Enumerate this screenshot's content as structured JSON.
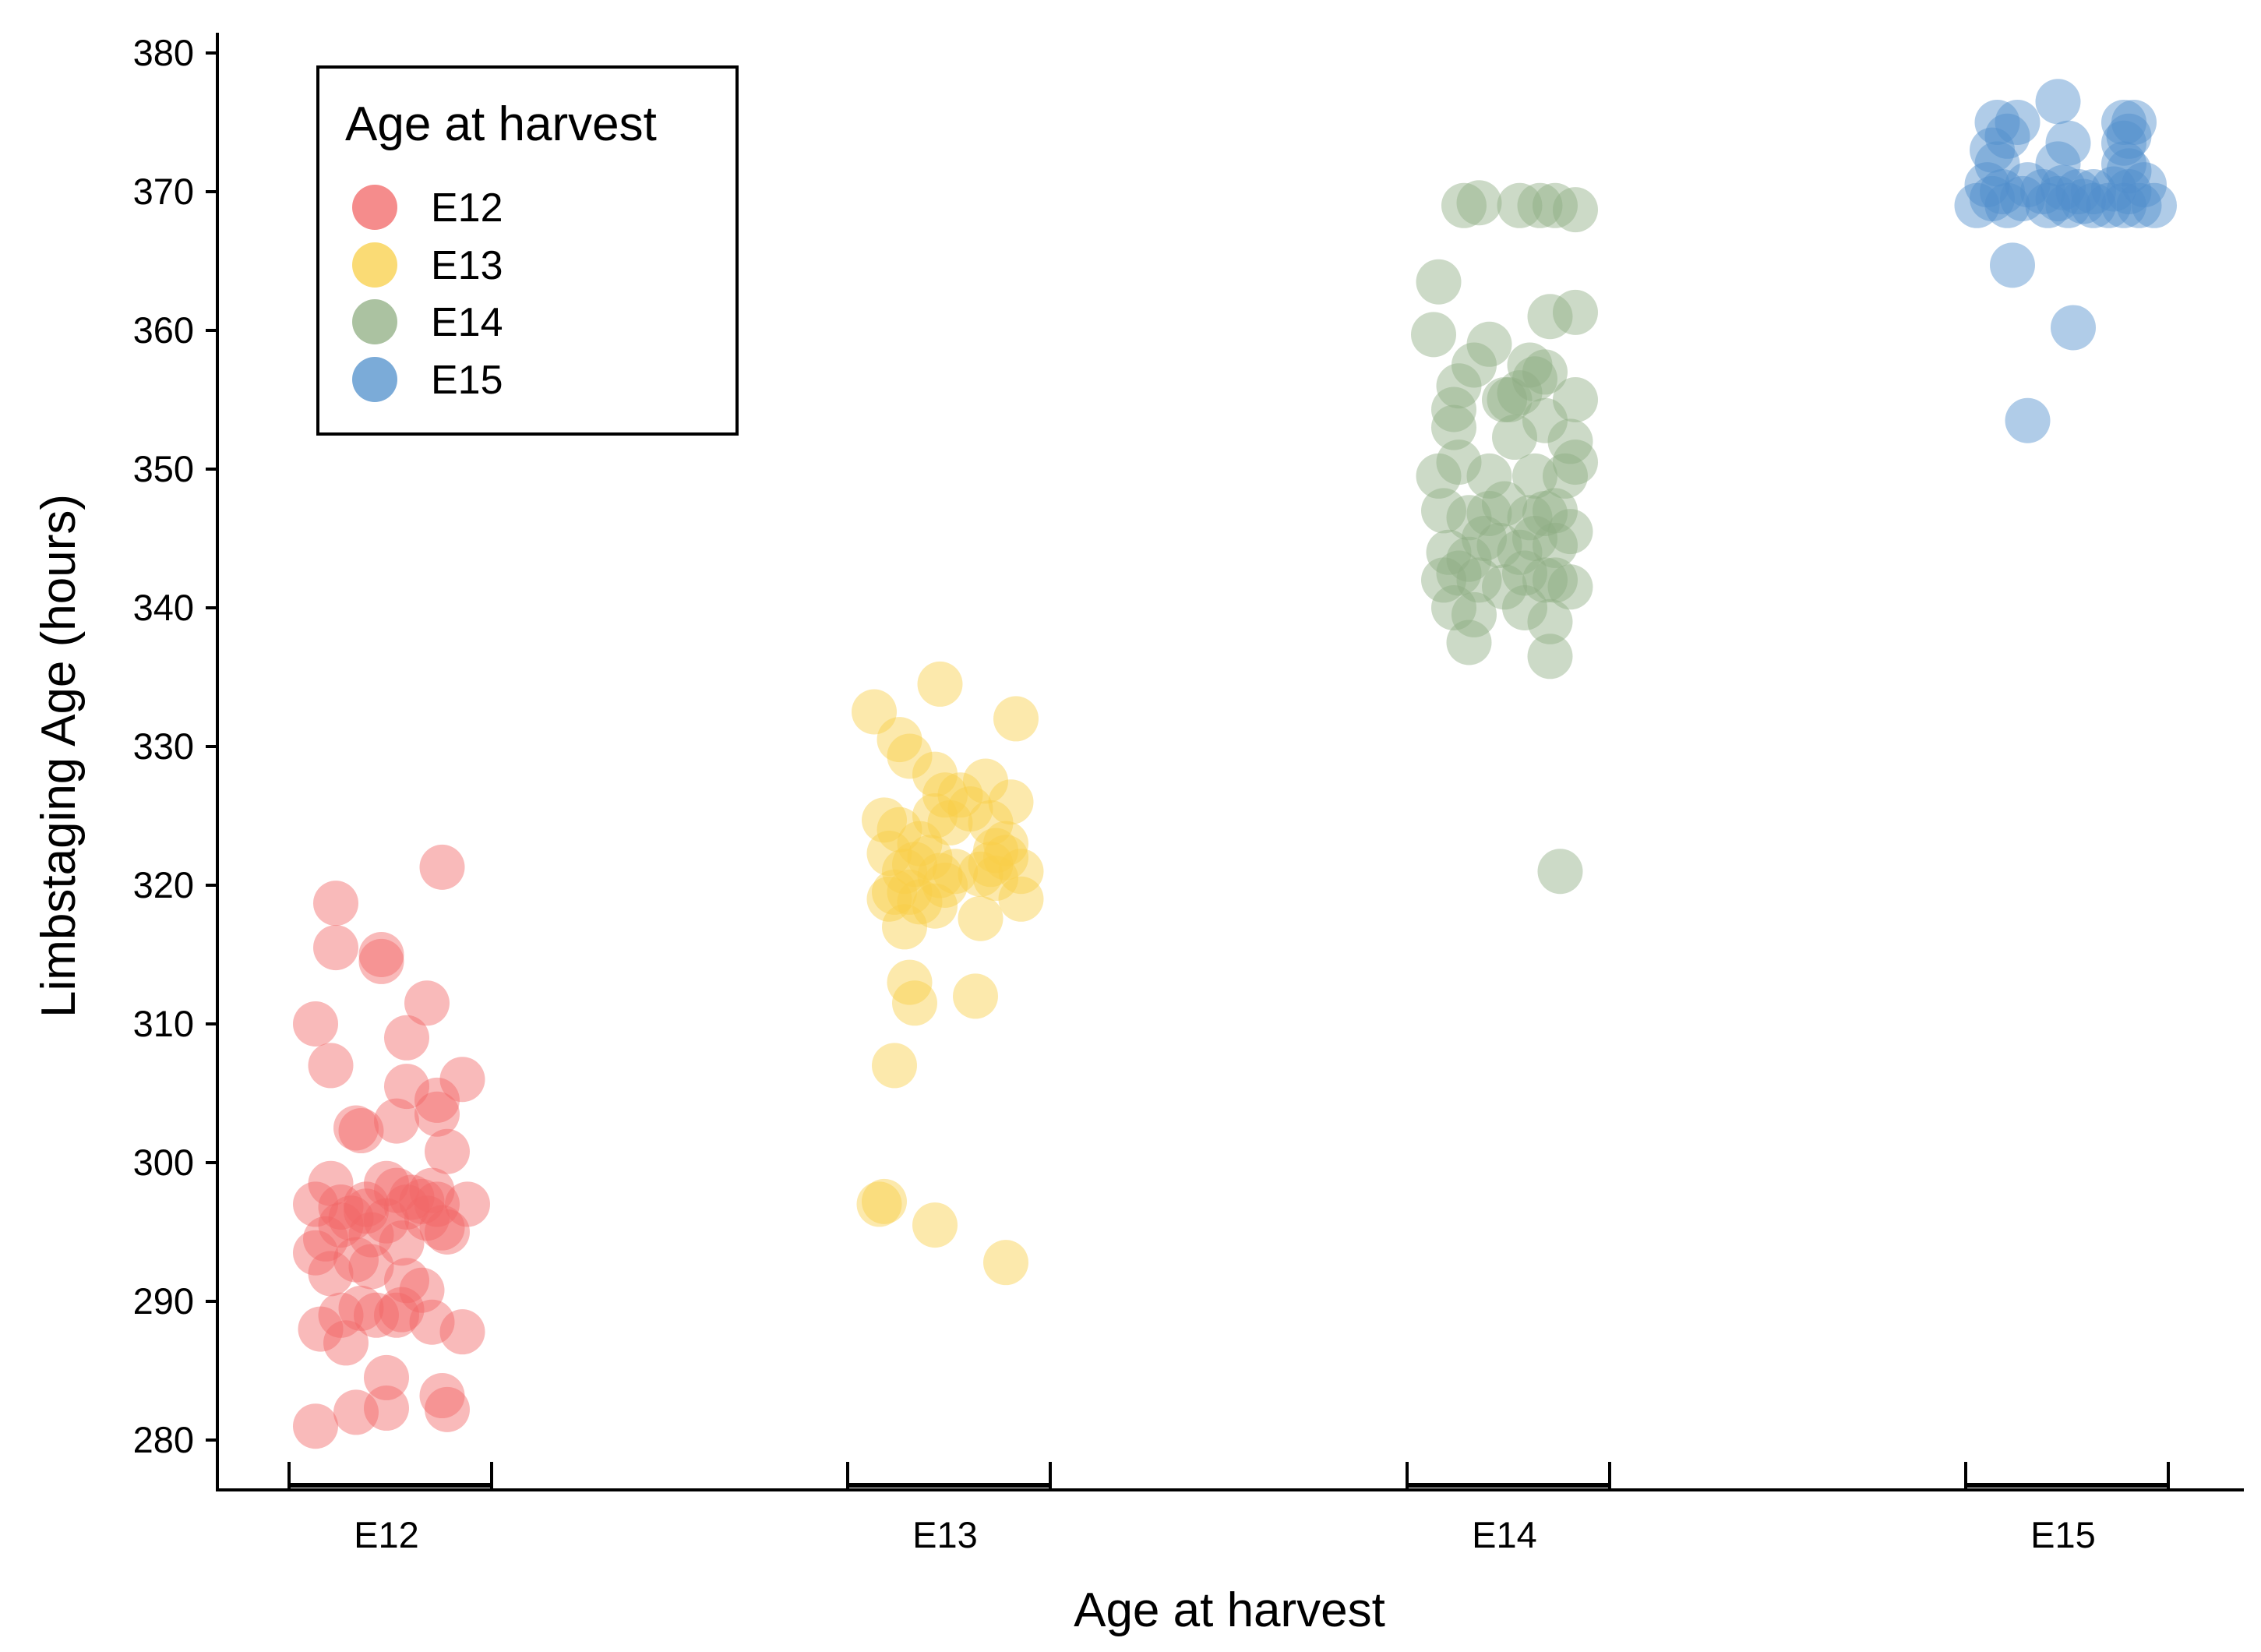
{
  "chart_data": {
    "type": "scatter",
    "title": "",
    "xlabel": "Age at harvest",
    "ylabel": "Limbstaging Age (hours)",
    "categories": [
      "E12",
      "E13",
      "E14",
      "E15"
    ],
    "ylim": [
      280,
      380
    ],
    "yticks": [
      280,
      290,
      300,
      310,
      320,
      330,
      340,
      350,
      360,
      370,
      380
    ],
    "legend": {
      "title": "Age at harvest",
      "position": "top-left",
      "entries": [
        "E12",
        "E13",
        "E14",
        "E15"
      ]
    },
    "colors": {
      "E12": "#f26666",
      "E13": "#f8cf47",
      "E14": "#8fae82",
      "E15": "#4f8fcb"
    },
    "series": [
      {
        "name": "E12",
        "points": [
          [
            -0.14,
            281.0
          ],
          [
            -0.06,
            282.0
          ],
          [
            0.0,
            282.3
          ],
          [
            0.12,
            282.2
          ],
          [
            0.0,
            284.5
          ],
          [
            0.11,
            283.2
          ],
          [
            -0.08,
            287.0
          ],
          [
            -0.13,
            288.0
          ],
          [
            -0.09,
            289.0
          ],
          [
            -0.05,
            289.5
          ],
          [
            -0.02,
            289.0
          ],
          [
            0.03,
            289.4
          ],
          [
            0.02,
            289.0
          ],
          [
            0.09,
            288.5
          ],
          [
            0.15,
            287.8
          ],
          [
            -0.11,
            292.0
          ],
          [
            -0.06,
            293.0
          ],
          [
            -0.03,
            292.5
          ],
          [
            0.04,
            291.5
          ],
          [
            0.07,
            290.8
          ],
          [
            -0.14,
            293.5
          ],
          [
            -0.12,
            294.5
          ],
          [
            -0.09,
            295.5
          ],
          [
            -0.07,
            296.0
          ],
          [
            -0.04,
            296.5
          ],
          [
            -0.09,
            296.8
          ],
          [
            -0.03,
            294.8
          ],
          [
            0.0,
            295.8
          ],
          [
            0.03,
            294.2
          ],
          [
            0.04,
            296.8
          ],
          [
            0.08,
            296.0
          ],
          [
            0.11,
            295.3
          ],
          [
            0.12,
            295.0
          ],
          [
            0.1,
            297.0
          ],
          [
            0.16,
            297.0
          ],
          [
            -0.14,
            297.0
          ],
          [
            -0.11,
            298.5
          ],
          [
            -0.04,
            297.0
          ],
          [
            0.0,
            298.5
          ],
          [
            0.02,
            298.0
          ],
          [
            0.05,
            297.5
          ],
          [
            0.07,
            297.2
          ],
          [
            0.09,
            298.0
          ],
          [
            0.12,
            300.8
          ],
          [
            -0.06,
            302.5
          ],
          [
            -0.05,
            302.3
          ],
          [
            0.02,
            303.0
          ],
          [
            0.1,
            303.5
          ],
          [
            0.1,
            304.5
          ],
          [
            0.04,
            305.5
          ],
          [
            0.15,
            306.0
          ],
          [
            -0.11,
            307.0
          ],
          [
            -0.14,
            310.0
          ],
          [
            0.04,
            309.0
          ],
          [
            0.08,
            311.5
          ],
          [
            -0.1,
            315.5
          ],
          [
            -0.01,
            315.0
          ],
          [
            -0.01,
            314.5
          ],
          [
            -0.1,
            318.7
          ],
          [
            0.11,
            321.3
          ]
        ]
      },
      {
        "name": "E13",
        "points": [
          [
            -0.14,
            332.5
          ],
          [
            -0.09,
            330.5
          ],
          [
            -0.07,
            329.3
          ],
          [
            -0.01,
            334.5
          ],
          [
            0.14,
            332.0
          ],
          [
            -0.02,
            328.0
          ],
          [
            0.0,
            326.5
          ],
          [
            0.08,
            327.5
          ],
          [
            0.13,
            326.0
          ],
          [
            0.03,
            326.5
          ],
          [
            -0.12,
            324.7
          ],
          [
            -0.09,
            324.0
          ],
          [
            -0.05,
            323.0
          ],
          [
            -0.02,
            325.0
          ],
          [
            0.01,
            324.5
          ],
          [
            0.05,
            325.5
          ],
          [
            0.09,
            324.5
          ],
          [
            0.12,
            323.0
          ],
          [
            0.1,
            322.5
          ],
          [
            0.12,
            322.0
          ],
          [
            -0.11,
            322.3
          ],
          [
            -0.08,
            321.0
          ],
          [
            -0.06,
            321.5
          ],
          [
            -0.03,
            322.0
          ],
          [
            -0.01,
            320.7
          ],
          [
            0.02,
            321.0
          ],
          [
            0.07,
            320.8
          ],
          [
            0.09,
            321.5
          ],
          [
            0.1,
            320.5
          ],
          [
            0.15,
            321.0
          ],
          [
            -0.1,
            319.5
          ],
          [
            -0.11,
            319.0
          ],
          [
            -0.07,
            319.5
          ],
          [
            -0.05,
            318.8
          ],
          [
            -0.02,
            318.5
          ],
          [
            0.0,
            320.0
          ],
          [
            0.15,
            319.0
          ],
          [
            -0.08,
            317.0
          ],
          [
            0.07,
            317.6
          ],
          [
            -0.07,
            313.0
          ],
          [
            -0.06,
            311.5
          ],
          [
            0.06,
            312.0
          ],
          [
            -0.1,
            307.0
          ],
          [
            -0.12,
            297.2
          ],
          [
            -0.13,
            297.0
          ],
          [
            -0.02,
            295.5
          ],
          [
            0.12,
            292.8
          ]
        ]
      },
      {
        "name": "E14",
        "points": [
          [
            -0.08,
            369.0
          ],
          [
            -0.05,
            369.2
          ],
          [
            0.03,
            369.0
          ],
          [
            0.07,
            369.0
          ],
          [
            0.1,
            369.0
          ],
          [
            0.14,
            368.7
          ],
          [
            -0.13,
            363.5
          ],
          [
            0.09,
            361.0
          ],
          [
            0.14,
            361.3
          ],
          [
            -0.14,
            359.7
          ],
          [
            -0.03,
            359.0
          ],
          [
            -0.06,
            357.5
          ],
          [
            0.06,
            356.5
          ],
          [
            -0.09,
            356.0
          ],
          [
            0.03,
            355.5
          ],
          [
            0.01,
            355.0
          ],
          [
            0.05,
            357.5
          ],
          [
            0.08,
            357.0
          ],
          [
            0.14,
            355.0
          ],
          [
            -0.1,
            354.3
          ],
          [
            0.0,
            355.0
          ],
          [
            -0.1,
            353.0
          ],
          [
            0.02,
            352.3
          ],
          [
            0.08,
            353.5
          ],
          [
            0.13,
            352.0
          ],
          [
            -0.13,
            349.5
          ],
          [
            -0.09,
            350.5
          ],
          [
            -0.03,
            349.5
          ],
          [
            0.06,
            349.5
          ],
          [
            0.12,
            349.5
          ],
          [
            0.14,
            350.5
          ],
          [
            -0.12,
            347.0
          ],
          [
            -0.07,
            346.5
          ],
          [
            -0.03,
            346.8
          ],
          [
            0.0,
            347.5
          ],
          [
            0.05,
            346.5
          ],
          [
            0.08,
            346.8
          ],
          [
            0.1,
            347.0
          ],
          [
            0.13,
            345.5
          ],
          [
            -0.11,
            344.0
          ],
          [
            -0.07,
            343.5
          ],
          [
            -0.04,
            345.0
          ],
          [
            -0.01,
            344.5
          ],
          [
            0.03,
            344.0
          ],
          [
            0.06,
            345.0
          ],
          [
            0.1,
            344.5
          ],
          [
            -0.12,
            342.0
          ],
          [
            -0.09,
            342.5
          ],
          [
            -0.05,
            342.0
          ],
          [
            0.0,
            341.5
          ],
          [
            0.04,
            342.5
          ],
          [
            0.08,
            342.0
          ],
          [
            0.1,
            342.0
          ],
          [
            0.13,
            341.5
          ],
          [
            -0.1,
            340.0
          ],
          [
            -0.06,
            339.5
          ],
          [
            0.04,
            340.0
          ],
          [
            0.09,
            339.0
          ],
          [
            -0.07,
            337.5
          ],
          [
            0.09,
            336.5
          ],
          [
            0.11,
            321.0
          ]
        ]
      },
      {
        "name": "E15",
        "points": [
          [
            -0.17,
            369.0
          ],
          [
            -0.14,
            369.5
          ],
          [
            -0.11,
            369.0
          ],
          [
            -0.08,
            369.5
          ],
          [
            -0.03,
            369.0
          ],
          [
            -0.01,
            369.5
          ],
          [
            0.01,
            369.0
          ],
          [
            0.04,
            369.3
          ],
          [
            0.06,
            369.0
          ],
          [
            0.09,
            369.0
          ],
          [
            0.12,
            369.0
          ],
          [
            0.15,
            369.0
          ],
          [
            0.18,
            369.0
          ],
          [
            -0.15,
            370.5
          ],
          [
            -0.12,
            370.0
          ],
          [
            -0.07,
            370.5
          ],
          [
            -0.04,
            370.0
          ],
          [
            0.0,
            370.3
          ],
          [
            0.03,
            370.0
          ],
          [
            0.06,
            370.0
          ],
          [
            0.1,
            370.2
          ],
          [
            0.13,
            370.0
          ],
          [
            0.16,
            370.5
          ],
          [
            -0.13,
            372.0
          ],
          [
            -0.01,
            372.0
          ],
          [
            0.12,
            372.0
          ],
          [
            0.13,
            371.5
          ],
          [
            -0.14,
            373.0
          ],
          [
            0.01,
            373.5
          ],
          [
            0.12,
            373.5
          ],
          [
            0.13,
            374.0
          ],
          [
            -0.13,
            375.0
          ],
          [
            -0.11,
            374.0
          ],
          [
            -0.09,
            375.0
          ],
          [
            -0.01,
            376.5
          ],
          [
            0.12,
            375.0
          ],
          [
            0.14,
            375.0
          ],
          [
            -0.1,
            364.7
          ],
          [
            0.02,
            360.2
          ],
          [
            -0.07,
            353.5
          ]
        ]
      }
    ]
  }
}
